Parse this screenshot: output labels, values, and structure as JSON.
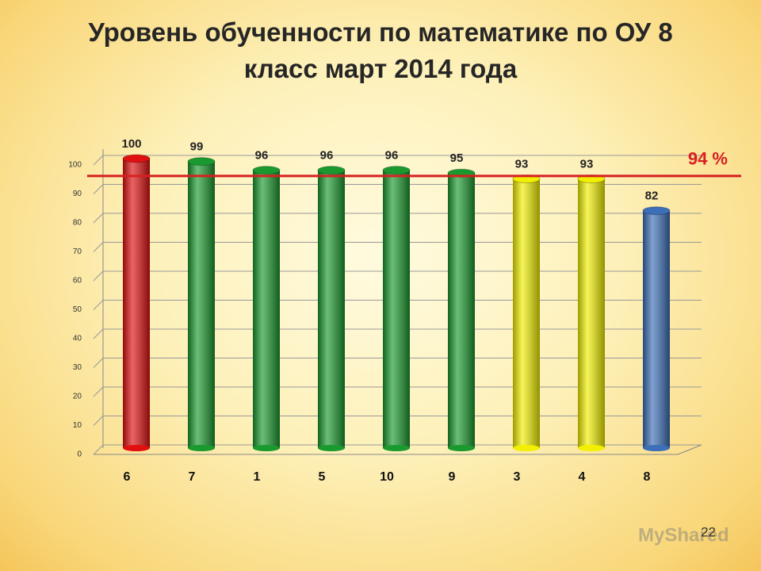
{
  "chart_data": {
    "type": "bar",
    "title": "Уровень обученности по математике по ОУ 8 класс март 2014 года",
    "categories": [
      "6",
      "7",
      "1",
      "5",
      "10",
      "9",
      "3",
      "4",
      "8"
    ],
    "values": [
      100,
      99,
      96,
      96,
      96,
      95,
      93,
      93,
      82
    ],
    "colors": [
      "#e01010",
      "#1a9a2e",
      "#1a9a2e",
      "#1a9a2e",
      "#1a9a2e",
      "#1a9a2e",
      "#f2f000",
      "#f2f000",
      "#3c6fb8"
    ],
    "ylim": [
      0,
      100
    ],
    "yticks": [
      0,
      10,
      20,
      30,
      40,
      50,
      60,
      70,
      80,
      90,
      100
    ],
    "grid": true,
    "reference_line": {
      "value": 94,
      "label": "94 %",
      "color": "#d62020"
    },
    "page_number": "22",
    "watermark": "MyShared"
  }
}
